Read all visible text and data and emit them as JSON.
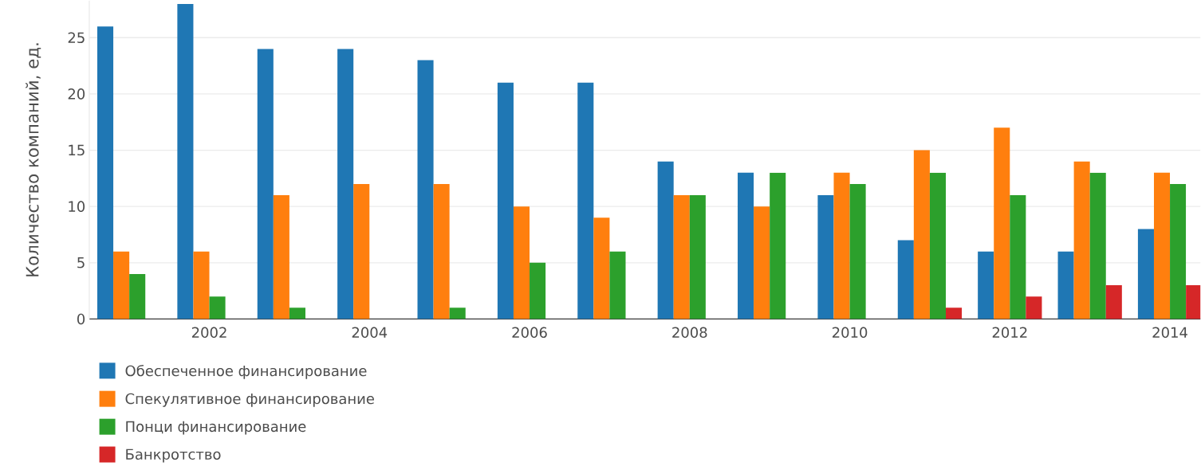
{
  "chart_data": {
    "type": "bar",
    "ylabel": "Количество компаний, ед.",
    "x": [
      2001,
      2002,
      2003,
      2004,
      2005,
      2006,
      2007,
      2008,
      2009,
      2010,
      2011,
      2012,
      2013,
      2014
    ],
    "series": [
      {
        "name": "Обеспеченное финансирование",
        "color": "#1f77b4",
        "values": [
          26,
          28,
          24,
          24,
          23,
          21,
          21,
          14,
          13,
          11,
          7,
          6,
          6,
          8
        ]
      },
      {
        "name": "Спекулятивное финансирование",
        "color": "#ff7f0e",
        "values": [
          6,
          6,
          11,
          12,
          12,
          10,
          9,
          11,
          10,
          13,
          15,
          17,
          14,
          13
        ]
      },
      {
        "name": "Понци финансирование",
        "color": "#2ca02c",
        "values": [
          4,
          2,
          1,
          0,
          1,
          5,
          6,
          11,
          13,
          12,
          13,
          11,
          13,
          12
        ]
      },
      {
        "name": "Банкротство",
        "color": "#d62728",
        "values": [
          0,
          0,
          0,
          0,
          0,
          0,
          0,
          0,
          0,
          0,
          1,
          2,
          3,
          3
        ]
      }
    ],
    "xlim": [
      2000.5,
      2014.38
    ],
    "xticks": [
      2002,
      2004,
      2006,
      2008,
      2010,
      2012,
      2014
    ],
    "ylim": [
      0,
      28.3
    ],
    "yticks": [
      0,
      5,
      10,
      15,
      20,
      25
    ],
    "grid": "y",
    "legend": "bottom"
  }
}
